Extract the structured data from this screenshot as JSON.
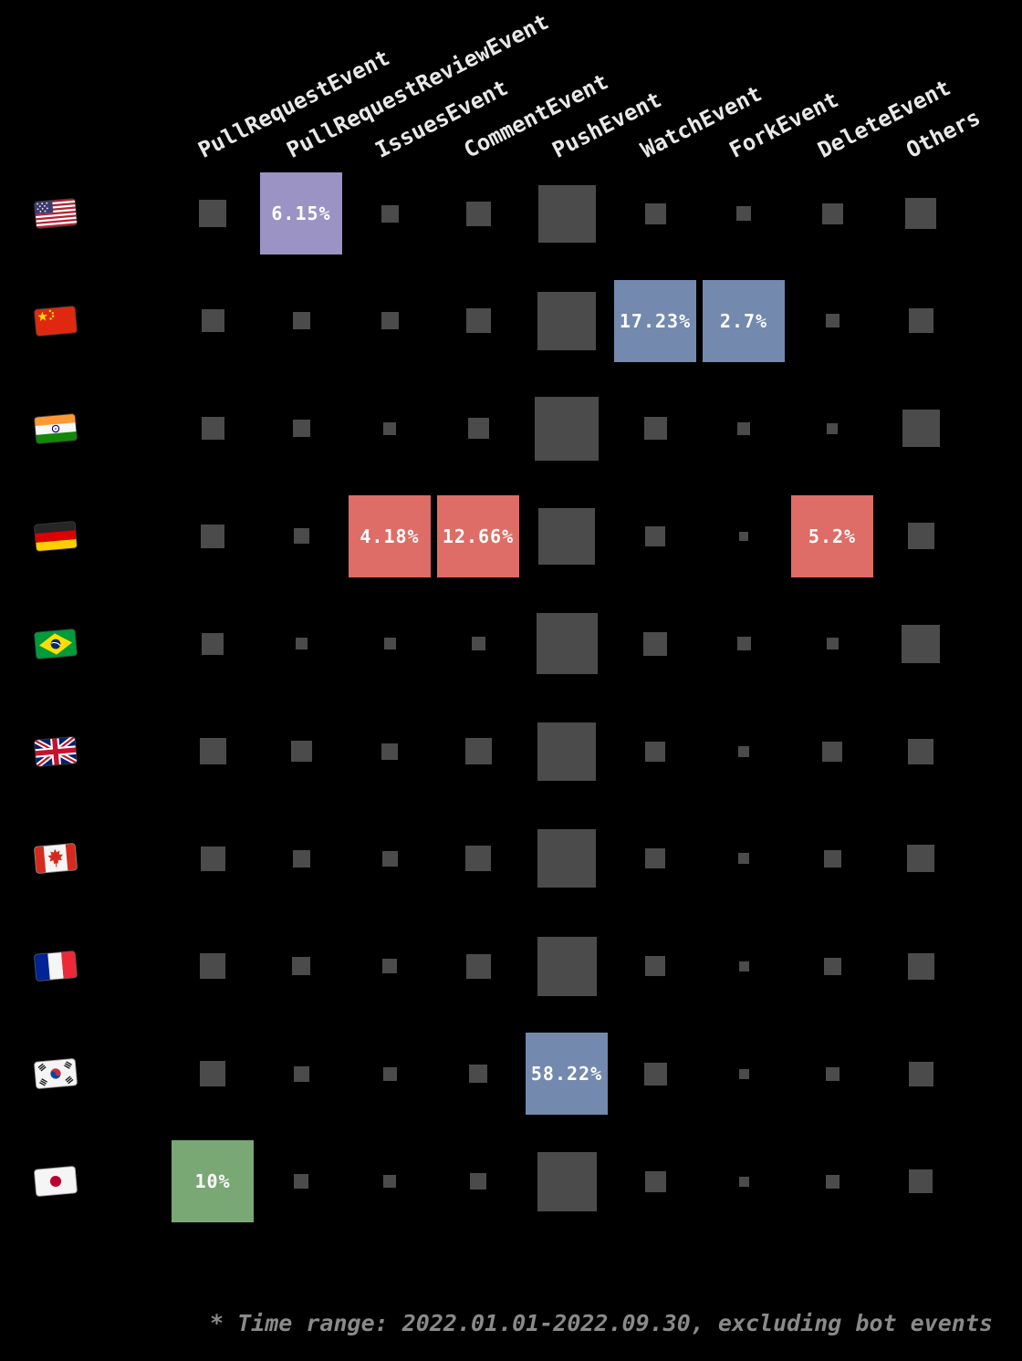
{
  "chart_data": {
    "type": "heatmap",
    "description": "GitHub event type distribution per country; square size encodes event share, highlighted cells show labeled percentage",
    "columns": [
      "PullRequestEvent",
      "PullRequestReviewEvent",
      "IssuesEvent",
      "CommentEvent",
      "PushEvent",
      "WatchEvent",
      "ForkEvent",
      "DeleteEvent",
      "Others"
    ],
    "rows": [
      {
        "id": "us",
        "country": "United States",
        "flag_icon": "flag-us",
        "cells": [
          {
            "kind": "square",
            "size": 30
          },
          {
            "kind": "highlight",
            "label": "6.15%",
            "color": "#9B93C4"
          },
          {
            "kind": "square",
            "size": 19
          },
          {
            "kind": "square",
            "size": 27
          },
          {
            "kind": "square",
            "size": 63
          },
          {
            "kind": "square",
            "size": 23
          },
          {
            "kind": "square",
            "size": 16
          },
          {
            "kind": "square",
            "size": 23
          },
          {
            "kind": "square",
            "size": 34
          }
        ]
      },
      {
        "id": "cn",
        "country": "China",
        "flag_icon": "flag-cn",
        "cells": [
          {
            "kind": "square",
            "size": 25
          },
          {
            "kind": "square",
            "size": 19
          },
          {
            "kind": "square",
            "size": 19
          },
          {
            "kind": "square",
            "size": 27
          },
          {
            "kind": "square",
            "size": 64
          },
          {
            "kind": "highlight",
            "label": "17.23%",
            "color": "#7389AE"
          },
          {
            "kind": "highlight",
            "label": "2.7%",
            "color": "#7389AE"
          },
          {
            "kind": "square",
            "size": 15
          },
          {
            "kind": "square",
            "size": 27
          }
        ]
      },
      {
        "id": "in",
        "country": "India",
        "flag_icon": "flag-in",
        "cells": [
          {
            "kind": "square",
            "size": 25
          },
          {
            "kind": "square",
            "size": 19
          },
          {
            "kind": "square",
            "size": 14
          },
          {
            "kind": "square",
            "size": 23
          },
          {
            "kind": "square",
            "size": 70
          },
          {
            "kind": "square",
            "size": 25
          },
          {
            "kind": "square",
            "size": 14
          },
          {
            "kind": "square",
            "size": 12
          },
          {
            "kind": "square",
            "size": 41
          }
        ]
      },
      {
        "id": "de",
        "country": "Germany",
        "flag_icon": "flag-de",
        "cells": [
          {
            "kind": "square",
            "size": 26
          },
          {
            "kind": "square",
            "size": 17
          },
          {
            "kind": "highlight",
            "label": "4.18%",
            "color": "#DD6D66"
          },
          {
            "kind": "highlight",
            "label": "12.66%",
            "color": "#DD6D66"
          },
          {
            "kind": "square",
            "size": 62
          },
          {
            "kind": "square",
            "size": 22
          },
          {
            "kind": "square",
            "size": 10
          },
          {
            "kind": "highlight",
            "label": "5.2%",
            "color": "#DD6D66"
          },
          {
            "kind": "square",
            "size": 29
          }
        ]
      },
      {
        "id": "br",
        "country": "Brazil",
        "flag_icon": "flag-br",
        "cells": [
          {
            "kind": "square",
            "size": 24
          },
          {
            "kind": "square",
            "size": 13
          },
          {
            "kind": "square",
            "size": 13
          },
          {
            "kind": "square",
            "size": 15
          },
          {
            "kind": "square",
            "size": 67
          },
          {
            "kind": "square",
            "size": 26
          },
          {
            "kind": "square",
            "size": 15
          },
          {
            "kind": "square",
            "size": 13
          },
          {
            "kind": "square",
            "size": 42
          }
        ]
      },
      {
        "id": "gb",
        "country": "United Kingdom",
        "flag_icon": "flag-gb",
        "cells": [
          {
            "kind": "square",
            "size": 29
          },
          {
            "kind": "square",
            "size": 23
          },
          {
            "kind": "square",
            "size": 18
          },
          {
            "kind": "square",
            "size": 29
          },
          {
            "kind": "square",
            "size": 64
          },
          {
            "kind": "square",
            "size": 22
          },
          {
            "kind": "square",
            "size": 12
          },
          {
            "kind": "square",
            "size": 22
          },
          {
            "kind": "square",
            "size": 28
          }
        ]
      },
      {
        "id": "ca",
        "country": "Canada",
        "flag_icon": "flag-ca",
        "cells": [
          {
            "kind": "square",
            "size": 27
          },
          {
            "kind": "square",
            "size": 19
          },
          {
            "kind": "square",
            "size": 17
          },
          {
            "kind": "square",
            "size": 28
          },
          {
            "kind": "square",
            "size": 64
          },
          {
            "kind": "square",
            "size": 22
          },
          {
            "kind": "square",
            "size": 12
          },
          {
            "kind": "square",
            "size": 19
          },
          {
            "kind": "square",
            "size": 30
          }
        ]
      },
      {
        "id": "fr",
        "country": "France",
        "flag_icon": "flag-fr",
        "cells": [
          {
            "kind": "square",
            "size": 28
          },
          {
            "kind": "square",
            "size": 20
          },
          {
            "kind": "square",
            "size": 16
          },
          {
            "kind": "square",
            "size": 27
          },
          {
            "kind": "square",
            "size": 65
          },
          {
            "kind": "square",
            "size": 22
          },
          {
            "kind": "square",
            "size": 11
          },
          {
            "kind": "square",
            "size": 19
          },
          {
            "kind": "square",
            "size": 29
          }
        ]
      },
      {
        "id": "kr",
        "country": "South Korea",
        "flag_icon": "flag-kr",
        "cells": [
          {
            "kind": "square",
            "size": 28
          },
          {
            "kind": "square",
            "size": 17
          },
          {
            "kind": "square",
            "size": 15
          },
          {
            "kind": "square",
            "size": 20
          },
          {
            "kind": "highlight",
            "label": "58.22%",
            "color": "#7389AE"
          },
          {
            "kind": "square",
            "size": 25
          },
          {
            "kind": "square",
            "size": 11
          },
          {
            "kind": "square",
            "size": 15
          },
          {
            "kind": "square",
            "size": 27
          }
        ]
      },
      {
        "id": "jp",
        "country": "Japan",
        "flag_icon": "flag-jp",
        "cells": [
          {
            "kind": "highlight",
            "label": "10%",
            "color": "#7AA874"
          },
          {
            "kind": "square",
            "size": 16
          },
          {
            "kind": "square",
            "size": 14
          },
          {
            "kind": "square",
            "size": 18
          },
          {
            "kind": "square",
            "size": 65
          },
          {
            "kind": "square",
            "size": 23
          },
          {
            "kind": "square",
            "size": 11
          },
          {
            "kind": "square",
            "size": 15
          },
          {
            "kind": "square",
            "size": 26
          }
        ]
      }
    ],
    "footnote": "* Time range: 2022.01.01-2022.09.30, excluding bot events",
    "palette": {
      "background": "#000000",
      "square": "#4B4B4B",
      "header_text": "#E8E8E8",
      "footnote_text": "#8A8A8A",
      "highlight_purple": "#9B93C4",
      "highlight_blue": "#7389AE",
      "highlight_red": "#DD6D66",
      "highlight_green": "#7AA874",
      "cell_label_text": "#FFFFFF"
    }
  }
}
